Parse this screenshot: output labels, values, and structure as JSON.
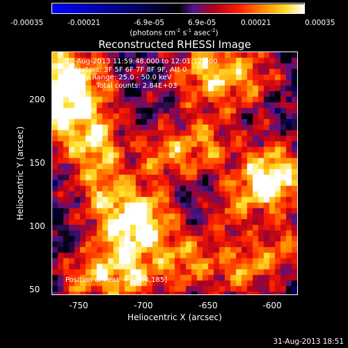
{
  "colorbar": {
    "ticks": [
      "-0.00035",
      "-0.00021",
      "-6.9e-05",
      "6.9e-05",
      "0.00021",
      "0.00035"
    ],
    "units_prefix": "(photons cm",
    "units_exp1": "-2",
    "units_mid": " s",
    "units_exp2": "-1",
    "units_mid2": " asec",
    "units_exp3": "-2",
    "units_suffix": ")"
  },
  "chart_data": {
    "type": "heatmap",
    "title": "Reconstructed RHESSI Image",
    "xlabel": "Heliocentric X (arcsec)",
    "ylabel": "Heliocentric Y (arcsec)",
    "xlim": [
      -765,
      -573
    ],
    "ylim": [
      45,
      235
    ],
    "x_ticks": [
      "-750",
      "-700",
      "-650",
      "-600"
    ],
    "y_ticks": [
      "200",
      "150",
      "100",
      "50"
    ],
    "x_tick_values": [
      -750,
      -700,
      -650,
      -600
    ],
    "y_tick_values": [
      200,
      150,
      100,
      50
    ],
    "color_range": [
      -0.00035,
      0.00035
    ],
    "peak": [
      -764,
      185
    ],
    "annotations": [
      "30-Aug-2013 11:59:48.000 to 12:01:12.000",
      "Detectors: 3F 5F 6F 7F 8F 9F, Att 0",
      "Energy Range: 25.0 - 50.0 keV",
      "Clean     Total counts: 2.84E+03"
    ],
    "peak_label": "Position of Peak = [-764,185]"
  },
  "timestamp": "31-Aug-2013 18:51"
}
